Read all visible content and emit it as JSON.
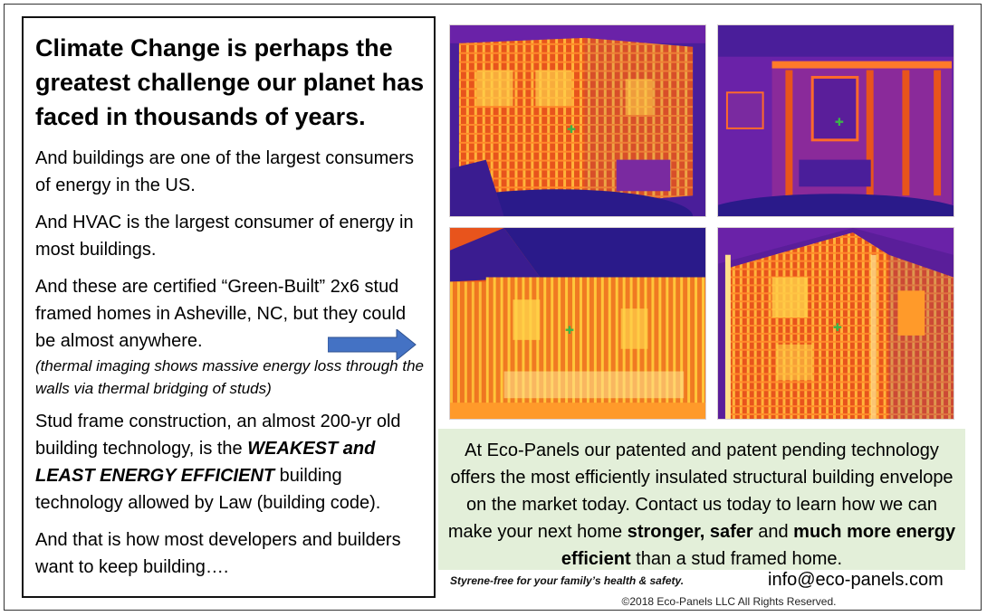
{
  "left": {
    "headline": "Climate Change is perhaps the greatest challenge our planet has faced in thousands of years.",
    "p1": "And buildings are one of the largest consumers of energy in the US.",
    "p2": "And HVAC is the largest consumer of energy in most buildings.",
    "p3": "And these are certified “Green-Built” 2x6 stud framed homes in Asheville, NC, but they could be almost anywhere.",
    "note": "(thermal imaging shows massive energy loss through the walls via thermal bridging of studs)",
    "p4_pre": "Stud frame construction, an almost 200-yr old building technology, is the ",
    "p4_emph": "WEAKEST and LEAST ENERGY EFFICIENT",
    "p4_post": " building technology allowed by Law (building code).",
    "p5": "And that is how most developers and builders want to keep building…."
  },
  "cta": {
    "pre": "At Eco-Panels our patented and patent pending technology offers the most efficiently insulated structural building envelope on the market today.  Contact us today to learn how we can make your next home ",
    "b1": "stronger, safer",
    "mid": " and ",
    "b2": "much more energy efficient",
    "post": " than a stud framed home."
  },
  "footer": {
    "styrene": "Styrene-free for your family’s health & safety.",
    "email": "info@eco-panels.com",
    "copyright": "©2018 Eco-Panels LLC  All Rights Reserved."
  },
  "colors": {
    "arrow": "#4472c4",
    "cta_bg": "#e3efd9",
    "thermal_hot": "#ffd24a",
    "thermal_mid": "#e8541c",
    "thermal_cool": "#6a22a8",
    "thermal_cold": "#2a1a8a"
  },
  "images": [
    "thermal-image-house-1",
    "thermal-image-interior-wall",
    "thermal-image-house-2",
    "thermal-image-house-3"
  ]
}
